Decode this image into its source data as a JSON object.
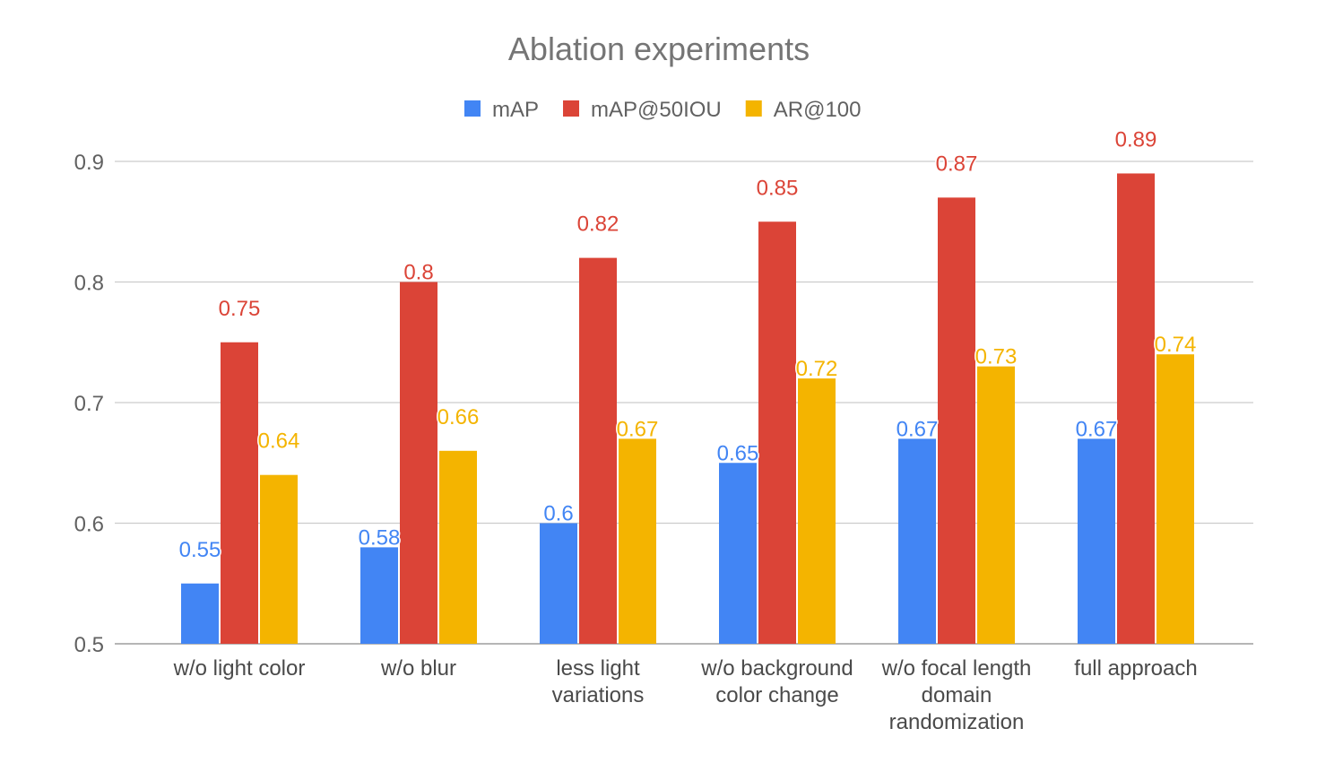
{
  "chart_data": {
    "type": "bar",
    "title": "Ablation experiments",
    "xlabel": "",
    "ylabel": "",
    "ylim": [
      0.5,
      0.9
    ],
    "yticks": [
      "0.5",
      "0.6",
      "0.7",
      "0.8",
      "0.9"
    ],
    "grid": true,
    "legend_position": "top",
    "categories": [
      [
        "w/o light color"
      ],
      [
        "w/o blur"
      ],
      [
        "less light",
        "variations"
      ],
      [
        "w/o background",
        "color change"
      ],
      [
        "w/o focal length",
        "domain",
        "randomization"
      ],
      [
        "full approach"
      ]
    ],
    "series": [
      {
        "name": "mAP",
        "color": "#4285f4",
        "values": [
          0.55,
          0.58,
          0.6,
          0.65,
          0.67,
          0.67
        ],
        "labels": [
          "0.55",
          "0.58",
          "0.6",
          "0.65",
          "0.67",
          "0.67"
        ]
      },
      {
        "name": "mAP@50IOU",
        "color": "#db4437",
        "values": [
          0.75,
          0.8,
          0.82,
          0.85,
          0.87,
          0.89
        ],
        "labels": [
          "0.75",
          "0.8",
          "0.82",
          "0.85",
          "0.87",
          "0.89"
        ]
      },
      {
        "name": "AR@100",
        "color": "#f4b400",
        "values": [
          0.64,
          0.66,
          0.67,
          0.72,
          0.73,
          0.74
        ],
        "labels": [
          "0.64",
          "0.66",
          "0.67",
          "0.72",
          "0.73",
          "0.74"
        ]
      }
    ]
  }
}
